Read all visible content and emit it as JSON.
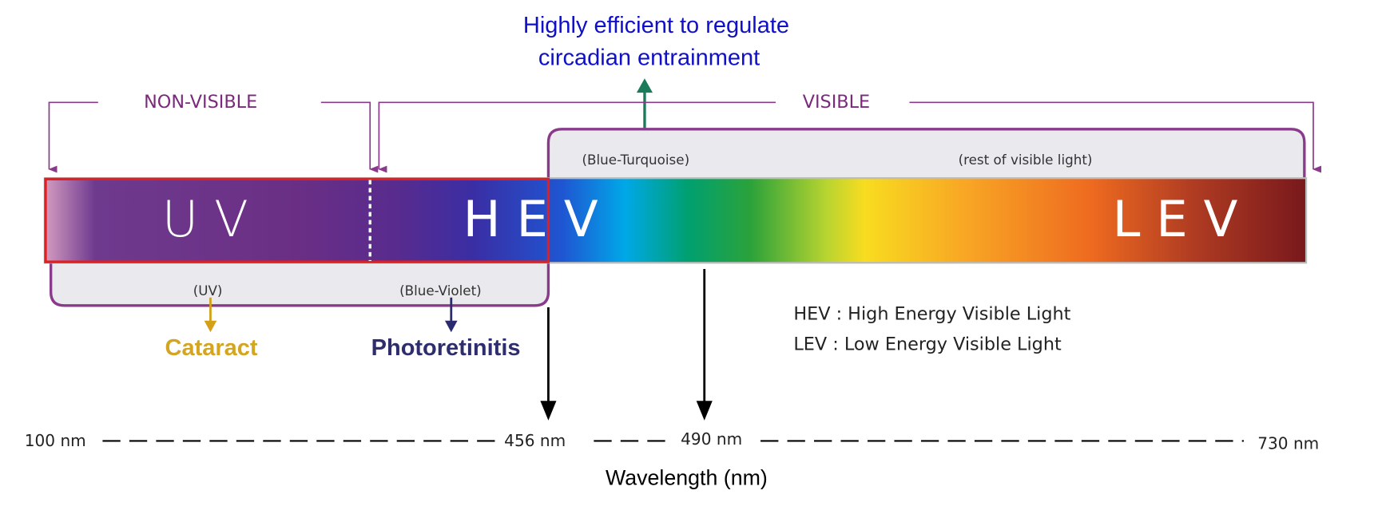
{
  "annotation": {
    "lines": [
      "Highly efficient to regulate",
      "circadian entrainment"
    ]
  },
  "regions": {
    "non_visible": "NON-VISIBLE",
    "visible": "VISIBLE"
  },
  "bands": [
    "U V",
    "H E V",
    "L E V"
  ],
  "sublabels": {
    "uv": "(UV)",
    "blue_violet": "(Blue-Violet)",
    "blue_turquoise": "(Blue-Turquoise)",
    "rest": "(rest of visible light)"
  },
  "effects": {
    "cataract": "Cataract",
    "photoretinitis": "Photoretinitis"
  },
  "legend": [
    "HEV : High Energy Visible Light",
    "LEV : Low Energy Visible Light"
  ],
  "axis": {
    "ticks": [
      "100 nm",
      "456 nm",
      "490 nm",
      "730 nm"
    ],
    "label": "Wavelength (nm)"
  }
}
